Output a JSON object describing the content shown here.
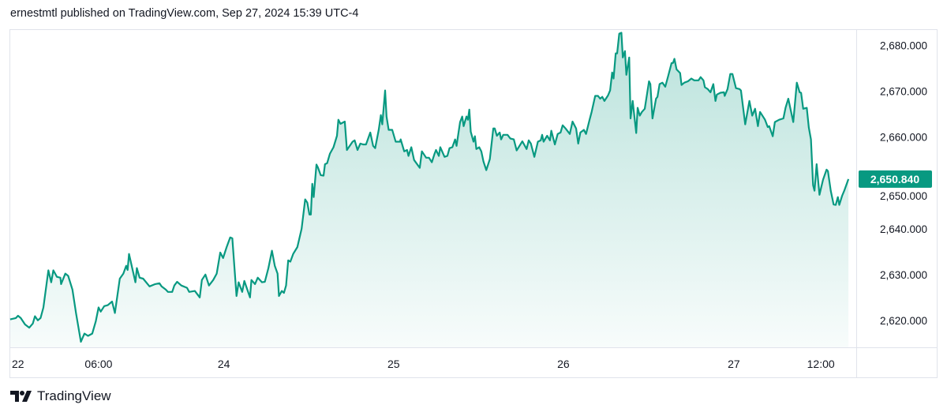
{
  "header": {
    "attribution": "ernestmtl published on TradingView.com, Sep 27, 2024 15:39 UTC-4"
  },
  "footer": {
    "brand": "TradingView",
    "logo_icon": "tradingview-logo-icon"
  },
  "colors": {
    "line": "#089981",
    "badge": "#089981",
    "grid_border": "#e0e3eb",
    "text": "#131722"
  },
  "chart_data": {
    "type": "area",
    "title": "",
    "xlabel": "",
    "ylabel": "",
    "x_unit": "trading hours since session '22' tick",
    "xlim": [
      -1.3,
      118.4
    ],
    "ylim": [
      2614.1,
      2683.4
    ],
    "grid": false,
    "last_price": "2,650.840",
    "last_value": 2650.84,
    "x_ticks": [
      {
        "value": 0,
        "label": "22"
      },
      {
        "value": 11.3,
        "label": "06:00"
      },
      {
        "value": 29.0,
        "label": "24"
      },
      {
        "value": 53.0,
        "label": "25"
      },
      {
        "value": 77.0,
        "label": "26"
      },
      {
        "value": 101.1,
        "label": "27"
      },
      {
        "value": 113.4,
        "label": "12:00"
      }
    ],
    "y_ticks": [
      {
        "value": 2680,
        "label": "2,680.000"
      },
      {
        "value": 2670,
        "label": "2,670.000"
      },
      {
        "value": 2660,
        "label": "2,660.000"
      },
      {
        "value": 2650,
        "label": "2,650.000"
      },
      {
        "value": 2640,
        "label": "2,640.000"
      },
      {
        "value": 2630,
        "label": "2,630.000"
      },
      {
        "value": 2620,
        "label": "2,620.000"
      }
    ],
    "points": [
      [
        -1.2,
        2620.2
      ],
      [
        -0.4,
        2620.5
      ],
      [
        -0.1,
        2621.0
      ],
      [
        0.3,
        2620.5
      ],
      [
        0.9,
        2619.1
      ],
      [
        1.5,
        2618.4
      ],
      [
        2.0,
        2619.3
      ],
      [
        2.3,
        2620.9
      ],
      [
        2.7,
        2620.0
      ],
      [
        3.1,
        2620.5
      ],
      [
        3.5,
        2622.8
      ],
      [
        4.2,
        2630.9
      ],
      [
        4.6,
        2628.3
      ],
      [
        4.9,
        2630.9
      ],
      [
        5.4,
        2629.5
      ],
      [
        5.9,
        2629.3
      ],
      [
        6.0,
        2627.9
      ],
      [
        6.6,
        2630.2
      ],
      [
        7.0,
        2629.7
      ],
      [
        7.6,
        2626.7
      ],
      [
        8.1,
        2621.6
      ],
      [
        8.8,
        2615.3
      ],
      [
        9.3,
        2617.1
      ],
      [
        9.8,
        2616.6
      ],
      [
        10.4,
        2617.1
      ],
      [
        10.9,
        2619.8
      ],
      [
        11.3,
        2622.8
      ],
      [
        11.6,
        2621.9
      ],
      [
        12.1,
        2623.1
      ],
      [
        12.6,
        2623.3
      ],
      [
        13.2,
        2624.1
      ],
      [
        13.6,
        2621.6
      ],
      [
        14.3,
        2629.1
      ],
      [
        14.8,
        2630.2
      ],
      [
        15.2,
        2631.9
      ],
      [
        15.4,
        2631.0
      ],
      [
        15.6,
        2634.5
      ],
      [
        16.5,
        2628.3
      ],
      [
        16.7,
        2631.4
      ],
      [
        17.1,
        2629.3
      ],
      [
        17.6,
        2629.1
      ],
      [
        18.5,
        2627.4
      ],
      [
        19.3,
        2627.9
      ],
      [
        19.9,
        2628.1
      ],
      [
        20.2,
        2627.4
      ],
      [
        20.8,
        2626.7
      ],
      [
        21.1,
        2626.2
      ],
      [
        21.7,
        2626.2
      ],
      [
        22.0,
        2627.6
      ],
      [
        22.4,
        2628.4
      ],
      [
        23.0,
        2627.6
      ],
      [
        23.8,
        2627.1
      ],
      [
        24.1,
        2626.2
      ],
      [
        24.9,
        2626.4
      ],
      [
        25.6,
        2625.0
      ],
      [
        25.9,
        2628.8
      ],
      [
        26.4,
        2630.0
      ],
      [
        26.9,
        2627.6
      ],
      [
        27.5,
        2628.8
      ],
      [
        28.0,
        2630.2
      ],
      [
        28.5,
        2634.8
      ],
      [
        28.9,
        2633.6
      ],
      [
        29.4,
        2636.0
      ],
      [
        29.9,
        2638.1
      ],
      [
        30.2,
        2637.9
      ],
      [
        30.8,
        2625.3
      ],
      [
        31.1,
        2628.3
      ],
      [
        31.6,
        2626.2
      ],
      [
        31.9,
        2628.6
      ],
      [
        32.7,
        2625.0
      ],
      [
        32.9,
        2628.8
      ],
      [
        33.4,
        2627.9
      ],
      [
        33.8,
        2629.3
      ],
      [
        34.4,
        2628.3
      ],
      [
        34.8,
        2628.4
      ],
      [
        35.3,
        2631.4
      ],
      [
        35.8,
        2635.2
      ],
      [
        36.2,
        2631.9
      ],
      [
        36.6,
        2630.2
      ],
      [
        36.8,
        2625.3
      ],
      [
        37.2,
        2626.4
      ],
      [
        37.5,
        2626.0
      ],
      [
        37.8,
        2627.6
      ],
      [
        38.1,
        2633.1
      ],
      [
        38.4,
        2632.8
      ],
      [
        38.8,
        2634.5
      ],
      [
        39.4,
        2636.0
      ],
      [
        40.0,
        2640.0
      ],
      [
        40.5,
        2646.4
      ],
      [
        40.8,
        2645.7
      ],
      [
        41.1,
        2643.1
      ],
      [
        41.3,
        2643.1
      ],
      [
        41.5,
        2649.8
      ],
      [
        41.7,
        2646.9
      ],
      [
        42.1,
        2654.0
      ],
      [
        42.3,
        2653.4
      ],
      [
        42.7,
        2651.7
      ],
      [
        43.1,
        2651.6
      ],
      [
        43.3,
        2654.1
      ],
      [
        43.6,
        2654.3
      ],
      [
        44.0,
        2656.4
      ],
      [
        44.5,
        2657.8
      ],
      [
        45.0,
        2660.3
      ],
      [
        45.2,
        2663.8
      ],
      [
        45.5,
        2662.9
      ],
      [
        46.1,
        2663.4
      ],
      [
        46.4,
        2657.2
      ],
      [
        46.8,
        2658.1
      ],
      [
        47.2,
        2659.0
      ],
      [
        47.5,
        2659.3
      ],
      [
        47.9,
        2657.2
      ],
      [
        48.3,
        2658.6
      ],
      [
        48.7,
        2658.4
      ],
      [
        49.1,
        2658.4
      ],
      [
        49.7,
        2661.0
      ],
      [
        50.1,
        2658.1
      ],
      [
        50.4,
        2657.6
      ],
      [
        50.9,
        2661.6
      ],
      [
        51.2,
        2664.8
      ],
      [
        51.4,
        2662.8
      ],
      [
        51.8,
        2670.2
      ],
      [
        52.0,
        2664.5
      ],
      [
        52.3,
        2661.6
      ],
      [
        52.8,
        2661.6
      ],
      [
        53.3,
        2659.0
      ],
      [
        53.9,
        2659.0
      ],
      [
        54.0,
        2659.5
      ],
      [
        54.5,
        2656.9
      ],
      [
        54.9,
        2657.2
      ],
      [
        55.1,
        2655.9
      ],
      [
        55.5,
        2657.8
      ],
      [
        55.9,
        2655.0
      ],
      [
        56.7,
        2653.3
      ],
      [
        57.0,
        2656.9
      ],
      [
        57.6,
        2655.5
      ],
      [
        58.0,
        2655.5
      ],
      [
        58.4,
        2654.5
      ],
      [
        58.8,
        2656.4
      ],
      [
        59.0,
        2657.2
      ],
      [
        59.4,
        2655.9
      ],
      [
        59.6,
        2657.8
      ],
      [
        60.2,
        2655.7
      ],
      [
        60.6,
        2655.9
      ],
      [
        60.9,
        2657.6
      ],
      [
        61.3,
        2657.8
      ],
      [
        61.7,
        2659.5
      ],
      [
        61.9,
        2658.1
      ],
      [
        62.4,
        2663.3
      ],
      [
        62.7,
        2664.5
      ],
      [
        62.9,
        2662.4
      ],
      [
        63.3,
        2664.5
      ],
      [
        63.5,
        2663.8
      ],
      [
        63.7,
        2666.0
      ],
      [
        63.9,
        2661.2
      ],
      [
        64.3,
        2659.0
      ],
      [
        64.5,
        2660.2
      ],
      [
        64.7,
        2657.4
      ],
      [
        65.1,
        2657.8
      ],
      [
        65.4,
        2656.9
      ],
      [
        65.7,
        2654.7
      ],
      [
        66.1,
        2652.8
      ],
      [
        66.6,
        2655.2
      ],
      [
        67.1,
        2661.9
      ],
      [
        67.3,
        2661.9
      ],
      [
        67.6,
        2660.3
      ],
      [
        68.0,
        2661.0
      ],
      [
        68.2,
        2659.5
      ],
      [
        68.5,
        2660.5
      ],
      [
        69.1,
        2660.5
      ],
      [
        69.5,
        2659.7
      ],
      [
        70.0,
        2659.5
      ],
      [
        70.4,
        2657.1
      ],
      [
        71.2,
        2659.1
      ],
      [
        71.8,
        2657.4
      ],
      [
        72.1,
        2659.3
      ],
      [
        72.4,
        2658.6
      ],
      [
        72.9,
        2655.7
      ],
      [
        73.4,
        2659.0
      ],
      [
        73.8,
        2659.3
      ],
      [
        74.0,
        2660.5
      ],
      [
        74.2,
        2659.0
      ],
      [
        74.7,
        2660.3
      ],
      [
        75.1,
        2659.3
      ],
      [
        75.3,
        2661.4
      ],
      [
        75.8,
        2658.4
      ],
      [
        76.2,
        2660.7
      ],
      [
        76.6,
        2661.0
      ],
      [
        76.9,
        2662.6
      ],
      [
        77.3,
        2661.9
      ],
      [
        77.9,
        2660.7
      ],
      [
        78.3,
        2663.4
      ],
      [
        78.8,
        2661.9
      ],
      [
        79.1,
        2658.6
      ],
      [
        79.4,
        2661.0
      ],
      [
        79.9,
        2661.6
      ],
      [
        80.2,
        2660.7
      ],
      [
        80.7,
        2663.8
      ],
      [
        81.0,
        2665.5
      ],
      [
        81.5,
        2669.0
      ],
      [
        81.9,
        2669.0
      ],
      [
        82.2,
        2668.4
      ],
      [
        82.5,
        2668.8
      ],
      [
        82.8,
        2667.9
      ],
      [
        83.3,
        2669.1
      ],
      [
        83.6,
        2670.2
      ],
      [
        83.9,
        2674.1
      ],
      [
        84.1,
        2672.8
      ],
      [
        84.4,
        2678.3
      ],
      [
        84.6,
        2678.3
      ],
      [
        84.9,
        2682.6
      ],
      [
        85.2,
        2682.8
      ],
      [
        85.4,
        2677.4
      ],
      [
        85.7,
        2678.8
      ],
      [
        85.9,
        2673.6
      ],
      [
        86.3,
        2677.4
      ],
      [
        86.5,
        2664.1
      ],
      [
        86.8,
        2667.9
      ],
      [
        87.3,
        2660.9
      ],
      [
        87.5,
        2666.4
      ],
      [
        87.8,
        2664.7
      ],
      [
        88.1,
        2665.5
      ],
      [
        88.5,
        2666.2
      ],
      [
        89.1,
        2672.2
      ],
      [
        89.3,
        2671.6
      ],
      [
        89.6,
        2664.1
      ],
      [
        90.1,
        2668.4
      ],
      [
        90.3,
        2668.8
      ],
      [
        90.6,
        2671.6
      ],
      [
        91.0,
        2671.9
      ],
      [
        91.4,
        2671.0
      ],
      [
        91.8,
        2673.3
      ],
      [
        92.3,
        2676.2
      ],
      [
        92.5,
        2676.2
      ],
      [
        92.7,
        2677.1
      ],
      [
        93.0,
        2674.8
      ],
      [
        93.5,
        2674.0
      ],
      [
        93.7,
        2671.4
      ],
      [
        94.1,
        2671.9
      ],
      [
        94.6,
        2672.2
      ],
      [
        95.1,
        2672.8
      ],
      [
        95.5,
        2672.4
      ],
      [
        96.1,
        2672.4
      ],
      [
        96.4,
        2673.1
      ],
      [
        96.8,
        2672.4
      ],
      [
        97.0,
        2670.9
      ],
      [
        97.4,
        2670.5
      ],
      [
        97.8,
        2669.8
      ],
      [
        98.2,
        2671.6
      ],
      [
        98.5,
        2667.9
      ],
      [
        98.7,
        2669.3
      ],
      [
        99.2,
        2669.7
      ],
      [
        99.7,
        2669.8
      ],
      [
        99.8,
        2669.0
      ],
      [
        100.2,
        2670.5
      ],
      [
        100.6,
        2673.8
      ],
      [
        100.9,
        2673.8
      ],
      [
        101.4,
        2670.7
      ],
      [
        101.9,
        2670.5
      ],
      [
        102.1,
        2670.2
      ],
      [
        102.7,
        2662.8
      ],
      [
        103.3,
        2667.9
      ],
      [
        103.7,
        2664.7
      ],
      [
        104.1,
        2666.2
      ],
      [
        104.5,
        2662.4
      ],
      [
        104.8,
        2665.5
      ],
      [
        105.5,
        2663.8
      ],
      [
        105.9,
        2662.2
      ],
      [
        106.1,
        2662.4
      ],
      [
        106.6,
        2660.2
      ],
      [
        106.9,
        2663.3
      ],
      [
        107.5,
        2663.8
      ],
      [
        108.1,
        2664.1
      ],
      [
        108.4,
        2666.4
      ],
      [
        108.8,
        2668.4
      ],
      [
        109.5,
        2663.3
      ],
      [
        110.0,
        2671.9
      ],
      [
        110.4,
        2669.8
      ],
      [
        110.6,
        2669.7
      ],
      [
        110.9,
        2666.2
      ],
      [
        111.4,
        2666.4
      ],
      [
        111.7,
        2662.1
      ],
      [
        112.0,
        2659.5
      ],
      [
        112.3,
        2649.5
      ],
      [
        112.5,
        2648.3
      ],
      [
        112.8,
        2654.1
      ],
      [
        113.2,
        2647.4
      ],
      [
        113.7,
        2650.7
      ],
      [
        114.2,
        2652.9
      ],
      [
        114.4,
        2652.6
      ],
      [
        114.8,
        2648.3
      ],
      [
        115.2,
        2645.3
      ],
      [
        115.5,
        2645.2
      ],
      [
        115.8,
        2646.9
      ],
      [
        116.0,
        2645.2
      ],
      [
        116.4,
        2647.2
      ],
      [
        116.7,
        2648.3
      ],
      [
        117.3,
        2650.84
      ]
    ]
  }
}
